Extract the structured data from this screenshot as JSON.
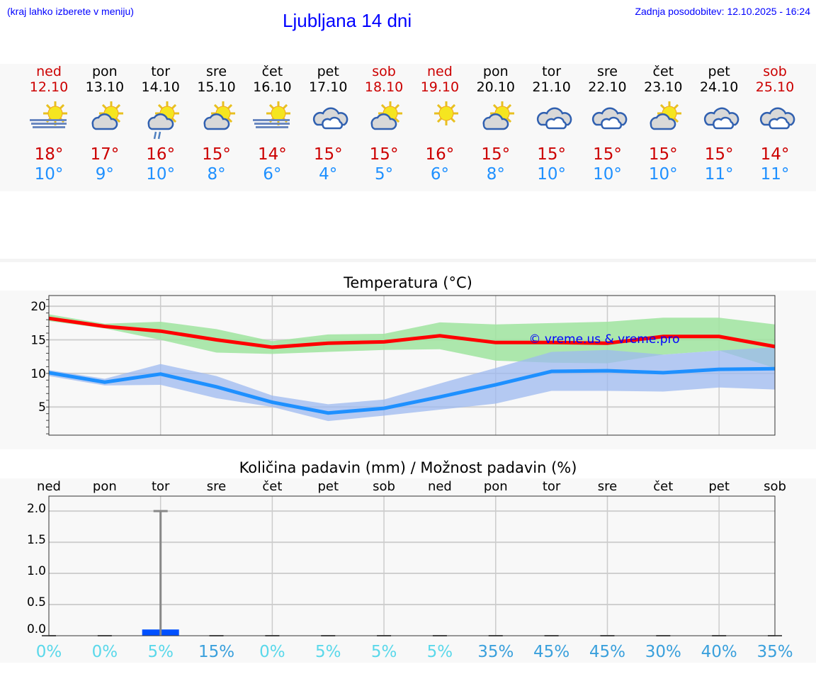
{
  "header": {
    "hint": "(kraj lahko izberete v meniju)",
    "title": "Ljubljana 14 dni",
    "updated": "Zadnja posodobitev: 12.10.2025 - 16:24"
  },
  "days": [
    {
      "name": "ned",
      "date": "12.10",
      "weekend": true,
      "icon": "fog-sun",
      "max": "18°",
      "min": "10°"
    },
    {
      "name": "pon",
      "date": "13.10",
      "weekend": false,
      "icon": "partly-cloudy",
      "max": "17°",
      "min": "9°"
    },
    {
      "name": "tor",
      "date": "14.10",
      "weekend": false,
      "icon": "partly-cloudy-rain",
      "max": "16°",
      "min": "10°"
    },
    {
      "name": "sre",
      "date": "15.10",
      "weekend": false,
      "icon": "partly-cloudy",
      "max": "15°",
      "min": "8°"
    },
    {
      "name": "čet",
      "date": "16.10",
      "weekend": false,
      "icon": "fog-sun",
      "max": "14°",
      "min": "6°"
    },
    {
      "name": "pet",
      "date": "17.10",
      "weekend": false,
      "icon": "cloudy",
      "max": "15°",
      "min": "4°"
    },
    {
      "name": "sob",
      "date": "18.10",
      "weekend": true,
      "icon": "partly-cloudy",
      "max": "15°",
      "min": "5°"
    },
    {
      "name": "ned",
      "date": "19.10",
      "weekend": true,
      "icon": "sun",
      "max": "16°",
      "min": "6°"
    },
    {
      "name": "pon",
      "date": "20.10",
      "weekend": false,
      "icon": "partly-cloudy",
      "max": "15°",
      "min": "8°"
    },
    {
      "name": "tor",
      "date": "21.10",
      "weekend": false,
      "icon": "cloudy",
      "max": "15°",
      "min": "10°"
    },
    {
      "name": "sre",
      "date": "22.10",
      "weekend": false,
      "icon": "cloudy",
      "max": "15°",
      "min": "10°"
    },
    {
      "name": "čet",
      "date": "23.10",
      "weekend": false,
      "icon": "partly-cloudy",
      "max": "15°",
      "min": "10°"
    },
    {
      "name": "pet",
      "date": "24.10",
      "weekend": false,
      "icon": "cloudy",
      "max": "15°",
      "min": "11°"
    },
    {
      "name": "sob",
      "date": "25.10",
      "weekend": true,
      "icon": "cloudy",
      "max": "14°",
      "min": "11°"
    }
  ],
  "colors": {
    "max": "#ff0000",
    "min": "#1e90ff",
    "max_band": "#9fe49f",
    "min_band": "#9db9f0",
    "precip_bar": "#0050ff",
    "whisker": "#888888",
    "pct_low": "#5ad8ea",
    "pct_high": "#3aa0dc",
    "link": "#0000ff"
  },
  "chart_data": [
    {
      "type": "line",
      "title": "Temperatura (°C)",
      "ylim": [
        0.8,
        21.6
      ],
      "yticks": [
        "20",
        "15",
        "10",
        "5"
      ],
      "ytick_values": [
        20,
        15,
        10,
        5
      ],
      "grid": true,
      "watermark": "© vreme.us & vreme.pro",
      "series": [
        {
          "key": "max",
          "values": [
            18.2,
            17.0,
            16.3,
            15.0,
            13.9,
            14.5,
            14.7,
            15.6,
            14.6,
            14.6,
            14.5,
            15.5,
            15.5,
            14.0
          ],
          "band_upper": [
            18.8,
            17.4,
            17.7,
            16.6,
            14.8,
            15.8,
            15.9,
            17.6,
            17.3,
            17.5,
            17.7,
            18.3,
            18.3,
            17.3
          ],
          "band_lower": [
            17.8,
            16.7,
            15.0,
            13.1,
            12.9,
            13.2,
            13.5,
            13.6,
            11.9,
            11.6,
            11.5,
            12.8,
            13.4,
            10.8
          ]
        },
        {
          "key": "min",
          "values": [
            10.1,
            8.7,
            9.9,
            8.0,
            5.7,
            4.1,
            4.8,
            6.5,
            8.3,
            10.3,
            10.4,
            10.1,
            10.6,
            10.7
          ],
          "band_upper": [
            10.5,
            9.2,
            11.4,
            9.6,
            6.7,
            5.4,
            6.1,
            8.5,
            10.8,
            13.2,
            13.5,
            12.8,
            13.4,
            13.9
          ],
          "band_lower": [
            9.6,
            8.2,
            8.3,
            6.3,
            5.0,
            2.9,
            3.7,
            4.6,
            5.5,
            7.4,
            7.4,
            7.3,
            7.9,
            7.6
          ]
        }
      ]
    },
    {
      "type": "bar",
      "title": "Količina padavin (mm) / Možnost padavin (%)",
      "ylim": [
        0,
        2.24
      ],
      "yticks": [
        "2.0",
        "1.5",
        "1.0",
        "0.5",
        "0.0"
      ],
      "ytick_values": [
        2.0,
        1.5,
        1.0,
        0.5,
        0.0
      ],
      "grid": true,
      "categories": [
        "ned",
        "pon",
        "tor",
        "sre",
        "čet",
        "pet",
        "sob",
        "ned",
        "pon",
        "tor",
        "sre",
        "čet",
        "pet",
        "sob"
      ],
      "values": [
        0,
        0,
        0.1,
        0,
        0,
        0,
        0,
        0,
        0,
        0,
        0,
        0,
        0,
        0
      ],
      "error_upper": [
        0,
        0,
        2.0,
        0,
        0,
        0,
        0,
        0,
        0,
        0,
        0,
        0,
        0,
        0
      ],
      "probability": [
        "0%",
        "0%",
        "5%",
        "15%",
        "0%",
        "5%",
        "5%",
        "5%",
        "35%",
        "45%",
        "45%",
        "30%",
        "40%",
        "35%"
      ]
    }
  ]
}
